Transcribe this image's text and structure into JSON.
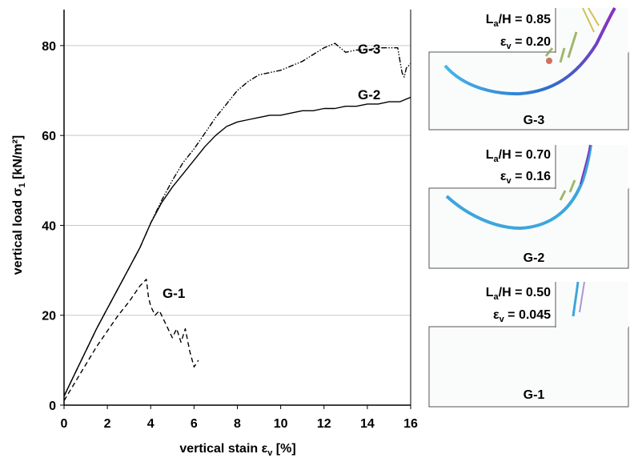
{
  "chart_data": {
    "type": "line",
    "xlabel": "vertical stain ε",
    "xlabel_sub": "v",
    "xlabel_unit": " [%]",
    "ylabel": "vertical load σ",
    "ylabel_sub": "1",
    "ylabel_unit": " [kN/m²]",
    "xlim": [
      0,
      16
    ],
    "ylim": [
      0,
      88
    ],
    "xticks": [
      "0",
      "2",
      "4",
      "6",
      "8",
      "10",
      "12",
      "14",
      "16"
    ],
    "yticks": [
      "0",
      "20",
      "40",
      "60",
      "80"
    ],
    "grid": "horizontal",
    "series": [
      {
        "name": "G-3",
        "style": "dash-dot-dot",
        "x": [
          0,
          0.5,
          1,
          1.5,
          2,
          2.5,
          3,
          3.5,
          4,
          4.5,
          5,
          5.5,
          6,
          6.5,
          7,
          7.5,
          8,
          8.5,
          9,
          9.5,
          10,
          10.5,
          11,
          11.5,
          12,
          12.5,
          13,
          13.5,
          14,
          14.5,
          15,
          15.4,
          15.6,
          15.7,
          15.8,
          16
        ],
        "y": [
          2,
          7,
          12,
          17,
          21.5,
          26,
          30.5,
          35,
          40.5,
          45.5,
          50,
          54,
          57,
          60.5,
          64,
          67,
          70,
          72,
          73.5,
          74,
          74.5,
          75.5,
          76.5,
          78,
          79.5,
          80.5,
          78.5,
          79,
          79,
          79.5,
          79.5,
          79.5,
          74,
          73,
          75,
          76
        ]
      },
      {
        "name": "G-2",
        "style": "solid",
        "x": [
          0,
          0.5,
          1,
          1.5,
          2,
          2.5,
          3,
          3.5,
          4,
          4.5,
          5,
          5.5,
          6,
          6.5,
          7,
          7.5,
          8,
          8.5,
          9,
          9.5,
          10,
          10.5,
          11,
          11.5,
          12,
          12.5,
          13,
          13.5,
          14,
          14.5,
          15,
          15.5,
          16
        ],
        "y": [
          2,
          7,
          12,
          17,
          21.5,
          26,
          30.5,
          35,
          40.5,
          45,
          48.5,
          51.5,
          54.5,
          57.5,
          60,
          62,
          63,
          63.5,
          64,
          64.5,
          64.5,
          65,
          65.5,
          65.5,
          66,
          66,
          66.5,
          66.5,
          67,
          67,
          67.5,
          67.5,
          68.5
        ]
      },
      {
        "name": "G-1",
        "style": "dashed",
        "x": [
          0,
          0.5,
          1,
          1.5,
          2,
          2.5,
          3,
          3.5,
          3.8,
          3.9,
          4.0,
          4.2,
          4.4,
          4.6,
          4.8,
          5.0,
          5.2,
          5.4,
          5.6,
          5.8,
          6.0,
          6.2
        ],
        "y": [
          1,
          5,
          9,
          13,
          16.5,
          20,
          23,
          26.5,
          28,
          24,
          22,
          20,
          21,
          19,
          17,
          15,
          17,
          14,
          17,
          12,
          8.5,
          10
        ]
      }
    ],
    "curve_labels": [
      "G-3",
      "G-2",
      "G-1"
    ]
  },
  "panels": [
    {
      "name": "G-3",
      "ratio_main": "L",
      "ratio_sub": "a",
      "ratio_rest": "/H = 0.85",
      "strain_main": "ε",
      "strain_sub": "v",
      "strain_rest": " = 0.20",
      "label": "G-3"
    },
    {
      "name": "G-2",
      "ratio_main": "L",
      "ratio_sub": "a",
      "ratio_rest": "/H = 0.70",
      "strain_main": "ε",
      "strain_sub": "v",
      "strain_rest": " = 0.16",
      "label": "G-2"
    },
    {
      "name": "G-1",
      "ratio_main": "L",
      "ratio_sub": "a",
      "ratio_rest": "/H = 0.50",
      "strain_main": "ε",
      "strain_sub": "v",
      "strain_rest": " = 0.045",
      "label": "G-1"
    }
  ]
}
